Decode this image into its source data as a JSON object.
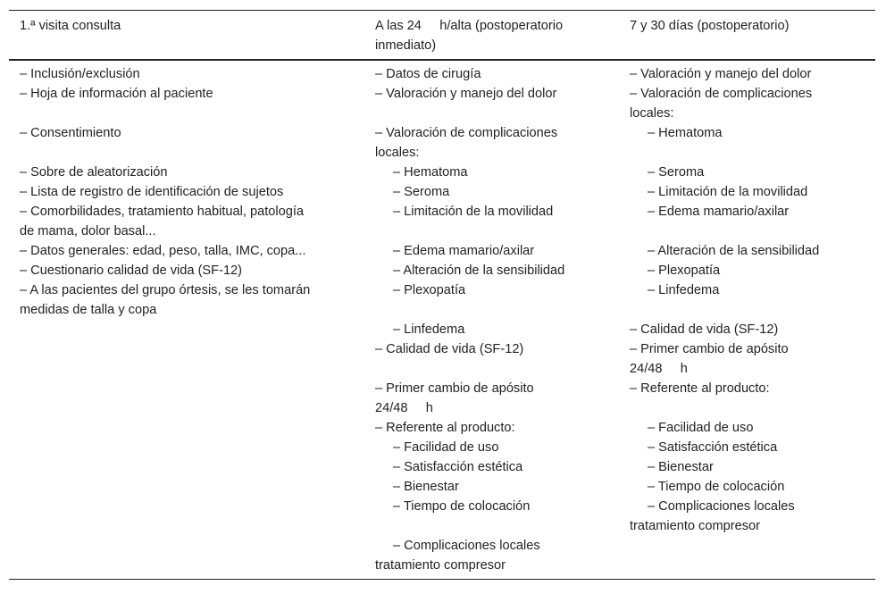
{
  "header": [
    [
      "1.ª visita consulta"
    ],
    [
      "A las 24     h/alta (postoperatorio",
      "inmediato)"
    ],
    [
      "7 y 30 días (postoperatorio)"
    ]
  ],
  "columns": [
    [
      {
        "t": "– Inclusión/exclusión"
      },
      {
        "t": "– Hoja de información al paciente"
      },
      {
        "t": ""
      },
      {
        "t": "– Consentimiento"
      },
      {
        "t": ""
      },
      {
        "t": "– Sobre de aleatorización"
      },
      {
        "t": "– Lista de registro de identificación de sujetos"
      },
      {
        "t": "– Comorbilidades, tratamiento habitual, patología"
      },
      {
        "t": "de mama, dolor basal..."
      },
      {
        "t": "– Datos generales: edad, peso, talla, IMC, copa..."
      },
      {
        "t": "– Cuestionario calidad de vida (SF-12)"
      },
      {
        "t": "– A las pacientes del grupo órtesis, se les tomarán"
      },
      {
        "t": "medidas de talla y copa"
      }
    ],
    [
      {
        "t": "– Datos de cirugía"
      },
      {
        "t": "– Valoración y manejo del dolor"
      },
      {
        "t": ""
      },
      {
        "t": "– Valoración de complicaciones"
      },
      {
        "t": "locales:"
      },
      {
        "t": "– Hematoma",
        "i": true
      },
      {
        "t": "– Seroma",
        "i": true
      },
      {
        "t": "– Limitación de la movilidad",
        "i": true
      },
      {
        "t": ""
      },
      {
        "t": "– Edema mamario/axilar",
        "i": true
      },
      {
        "t": "– Alteración de la sensibilidad",
        "i": true
      },
      {
        "t": "– Plexopatía",
        "i": true
      },
      {
        "t": ""
      },
      {
        "t": "– Linfedema",
        "i": true
      },
      {
        "t": "– Calidad de vida (SF-12)"
      },
      {
        "t": ""
      },
      {
        "t": "– Primer cambio de apósito"
      },
      {
        "t": "24/48     h"
      },
      {
        "t": "– Referente al producto:"
      },
      {
        "t": "– Facilidad de uso",
        "i": true
      },
      {
        "t": "– Satisfacción estética",
        "i": true
      },
      {
        "t": "– Bienestar",
        "i": true
      },
      {
        "t": "– Tiempo de colocación",
        "i": true
      },
      {
        "t": ""
      },
      {
        "t": "– Complicaciones locales",
        "i": true
      },
      {
        "t": "tratamiento compresor"
      }
    ],
    [
      {
        "t": "– Valoración y manejo del dolor"
      },
      {
        "t": "– Valoración de complicaciones"
      },
      {
        "t": "locales:"
      },
      {
        "t": "– Hematoma",
        "i": true
      },
      {
        "t": ""
      },
      {
        "t": "– Seroma",
        "i": true
      },
      {
        "t": "– Limitación de la movilidad",
        "i": true
      },
      {
        "t": "– Edema mamario/axilar",
        "i": true
      },
      {
        "t": ""
      },
      {
        "t": "– Alteración de la sensibilidad",
        "i": true
      },
      {
        "t": "– Plexopatía",
        "i": true
      },
      {
        "t": "– Linfedema",
        "i": true
      },
      {
        "t": ""
      },
      {
        "t": "– Calidad de vida (SF-12)"
      },
      {
        "t": "– Primer cambio de apósito"
      },
      {
        "t": "24/48     h"
      },
      {
        "t": "– Referente al producto:"
      },
      {
        "t": ""
      },
      {
        "t": "– Facilidad de uso",
        "i": true
      },
      {
        "t": "– Satisfacción estética",
        "i": true
      },
      {
        "t": "– Bienestar",
        "i": true
      },
      {
        "t": "– Tiempo de colocación",
        "i": true
      },
      {
        "t": "– Complicaciones locales",
        "i": true
      },
      {
        "t": "tratamiento compresor"
      }
    ]
  ]
}
